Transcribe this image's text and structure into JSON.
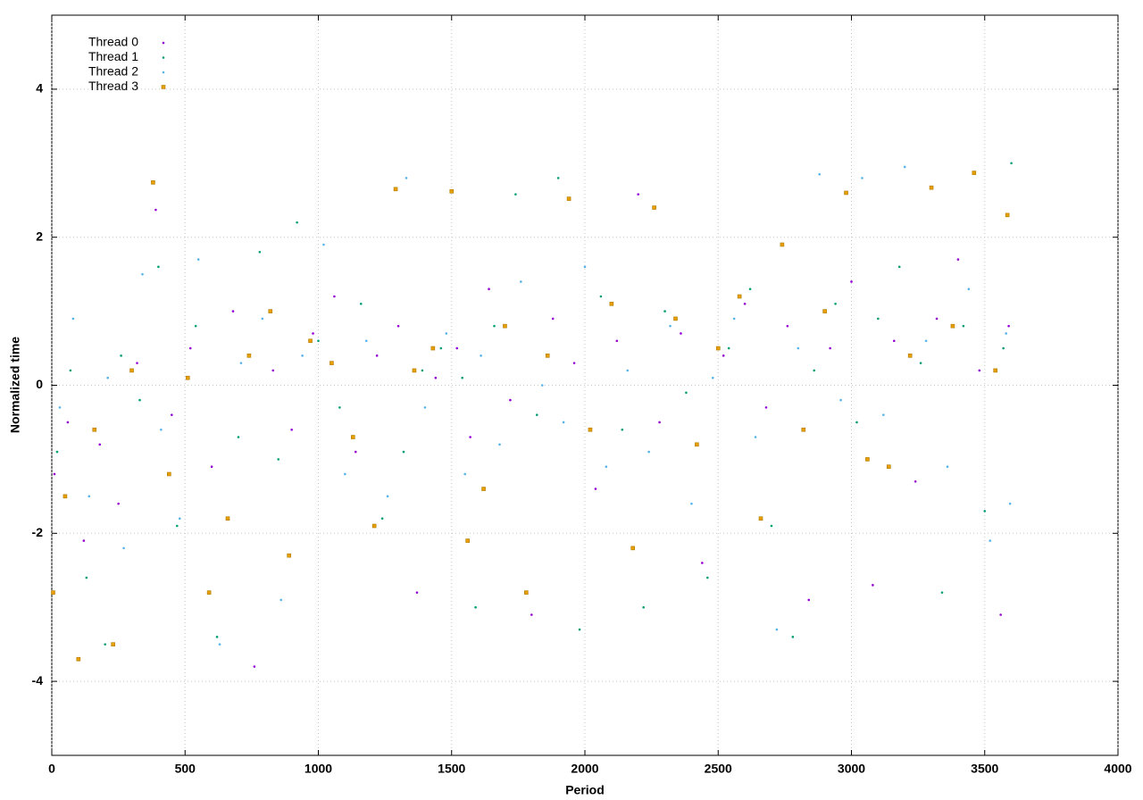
{
  "chart_data": {
    "type": "scatter",
    "xlabel": "Period",
    "ylabel": "Normalized time",
    "xlim": [
      0,
      4000
    ],
    "ylim": [
      -5,
      5
    ],
    "xticks": [
      0,
      500,
      1000,
      1500,
      2000,
      2500,
      3000,
      3500,
      4000
    ],
    "yticks": [
      -4,
      -2,
      0,
      2,
      4
    ],
    "grid": true,
    "legend": "top-left",
    "series": [
      {
        "name": "Thread 0",
        "color": "#9400d3",
        "marker": "dot",
        "x": [
          10,
          60,
          120,
          180,
          250,
          320,
          390,
          450,
          520,
          600,
          680,
          760,
          830,
          900,
          980,
          1060,
          1140,
          1220,
          1300,
          1370,
          1440,
          1520,
          1570,
          1640,
          1720,
          1800,
          1880,
          1960,
          2040,
          2120,
          2200,
          2280,
          2360,
          2440,
          2520,
          2600,
          2680,
          2760,
          2840,
          2920,
          3000,
          3080,
          3160,
          3240,
          3320,
          3400,
          3480,
          3560,
          3590
        ],
        "values": [
          -1.2,
          -0.5,
          -2.1,
          -0.8,
          -1.6,
          0.3,
          2.37,
          -0.4,
          0.5,
          -1.1,
          1.0,
          -3.8,
          0.2,
          -0.6,
          0.7,
          1.2,
          -0.9,
          0.4,
          0.8,
          -2.8,
          0.1,
          0.5,
          -0.7,
          1.3,
          -0.2,
          -3.1,
          0.9,
          0.3,
          -1.4,
          0.6,
          2.58,
          -0.5,
          0.7,
          -2.4,
          0.4,
          1.1,
          -0.3,
          0.8,
          -2.9,
          0.5,
          1.4,
          -2.7,
          0.6,
          -1.3,
          0.9,
          1.7,
          0.2,
          -3.1,
          0.8
        ]
      },
      {
        "name": "Thread 1",
        "color": "#009e73",
        "marker": "dot",
        "x": [
          20,
          70,
          130,
          200,
          260,
          330,
          400,
          470,
          540,
          620,
          700,
          780,
          850,
          920,
          1000,
          1080,
          1160,
          1240,
          1320,
          1390,
          1460,
          1540,
          1590,
          1660,
          1740,
          1820,
          1900,
          1980,
          2060,
          2140,
          2220,
          2300,
          2380,
          2460,
          2540,
          2620,
          2700,
          2780,
          2860,
          2940,
          3020,
          3100,
          3180,
          3260,
          3340,
          3420,
          3500,
          3570,
          3600
        ],
        "values": [
          -0.9,
          0.2,
          -2.6,
          -3.5,
          0.4,
          -0.2,
          1.6,
          -1.9,
          0.8,
          -3.4,
          -0.7,
          1.8,
          -1.0,
          2.2,
          0.6,
          -0.3,
          1.1,
          -1.8,
          -0.9,
          0.2,
          0.5,
          0.1,
          -3.0,
          0.8,
          2.58,
          -0.4,
          2.8,
          -3.3,
          1.2,
          -0.6,
          -3.0,
          1.0,
          -0.1,
          -2.6,
          0.5,
          1.3,
          -1.9,
          -3.4,
          0.2,
          1.1,
          -0.5,
          0.9,
          1.6,
          0.3,
          -2.8,
          0.8,
          -1.7,
          0.5,
          3.0
        ]
      },
      {
        "name": "Thread 2",
        "color": "#56b4e9",
        "marker": "dot",
        "x": [
          30,
          80,
          140,
          210,
          270,
          340,
          410,
          480,
          550,
          630,
          710,
          790,
          860,
          940,
          1020,
          1100,
          1180,
          1260,
          1330,
          1400,
          1480,
          1550,
          1610,
          1680,
          1760,
          1840,
          1920,
          2000,
          2080,
          2160,
          2240,
          2320,
          2400,
          2480,
          2560,
          2640,
          2720,
          2800,
          2880,
          2960,
          3040,
          3120,
          3200,
          3280,
          3360,
          3440,
          3520,
          3580,
          3595
        ],
        "values": [
          -0.3,
          0.9,
          -1.5,
          0.1,
          -2.2,
          1.5,
          -0.6,
          -1.8,
          1.7,
          -3.5,
          0.3,
          0.9,
          -2.9,
          0.4,
          1.9,
          -1.2,
          0.6,
          -1.5,
          2.8,
          -0.3,
          0.7,
          -1.2,
          0.4,
          -0.8,
          1.4,
          0.0,
          -0.5,
          1.6,
          -1.1,
          0.2,
          -0.9,
          0.8,
          -1.6,
          0.1,
          0.9,
          -0.7,
          -3.3,
          0.5,
          2.85,
          -0.2,
          2.8,
          -0.4,
          2.95,
          0.6,
          -1.1,
          1.3,
          -2.1,
          0.7,
          -1.6
        ]
      },
      {
        "name": "Thread 3",
        "color": "#e69f00",
        "marker": "square",
        "x": [
          5,
          50,
          100,
          160,
          230,
          300,
          380,
          440,
          510,
          590,
          660,
          740,
          820,
          890,
          970,
          1050,
          1130,
          1210,
          1290,
          1360,
          1430,
          1500,
          1560,
          1620,
          1700,
          1780,
          1860,
          1940,
          2020,
          2100,
          2180,
          2260,
          2340,
          2420,
          2500,
          2580,
          2660,
          2740,
          2820,
          2900,
          2980,
          3060,
          3140,
          3220,
          3300,
          3380,
          3460,
          3540,
          3585
        ],
        "values": [
          -2.8,
          -1.5,
          -3.7,
          -0.6,
          -3.5,
          0.2,
          2.74,
          -1.2,
          0.1,
          -2.8,
          -1.8,
          0.4,
          1.0,
          -2.3,
          0.6,
          0.3,
          -0.7,
          -1.9,
          2.65,
          0.2,
          0.5,
          2.62,
          -2.1,
          -1.4,
          0.8,
          -2.8,
          0.4,
          2.52,
          -0.6,
          1.1,
          -2.2,
          2.4,
          0.9,
          -0.8,
          0.5,
          1.2,
          -1.8,
          1.9,
          -0.6,
          1.0,
          2.6,
          -1.0,
          -1.1,
          0.4,
          2.67,
          0.8,
          2.87,
          0.2,
          2.3
        ]
      }
    ]
  }
}
